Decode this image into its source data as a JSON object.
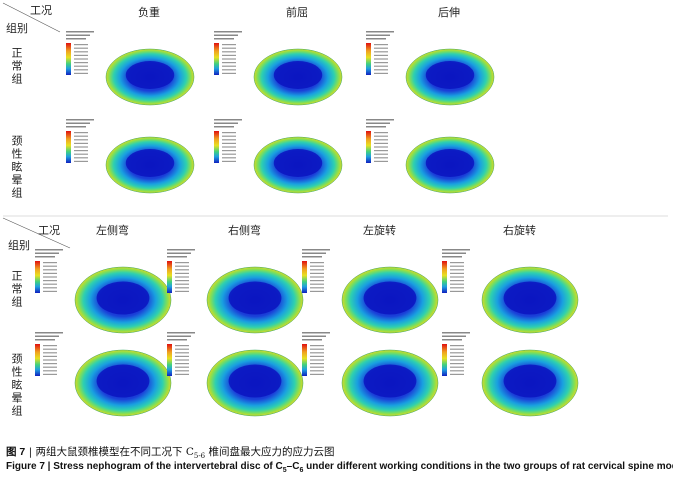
{
  "figure": {
    "top": {
      "corner": {
        "condition": "工况",
        "group": "组别"
      },
      "columns": [
        "负重",
        "前屈",
        "后伸"
      ],
      "rows": [
        "正常组",
        "颈性眩晕组"
      ]
    },
    "bottom": {
      "corner": {
        "condition": "工况",
        "group": "组别"
      },
      "columns": [
        "左侧弯",
        "右侧弯",
        "左旋转",
        "右旋转"
      ],
      "rows": [
        "正常组",
        "颈性眩晕组"
      ]
    },
    "caption": {
      "zh_label": "图 7",
      "zh_before": "两组大鼠颈椎模型在不同工况下 C",
      "zh_sub": "5-6",
      "zh_after": " 椎间盘最大应力的应力云图",
      "en_label": "Figure 7",
      "en_before": "Stress nephogram of the intervertebral disc of C",
      "en_sub1": "5",
      "en_mid": "–C",
      "en_sub2": "6",
      "en_after": " under different working conditions in the two groups of rat cervical spine models"
    }
  }
}
